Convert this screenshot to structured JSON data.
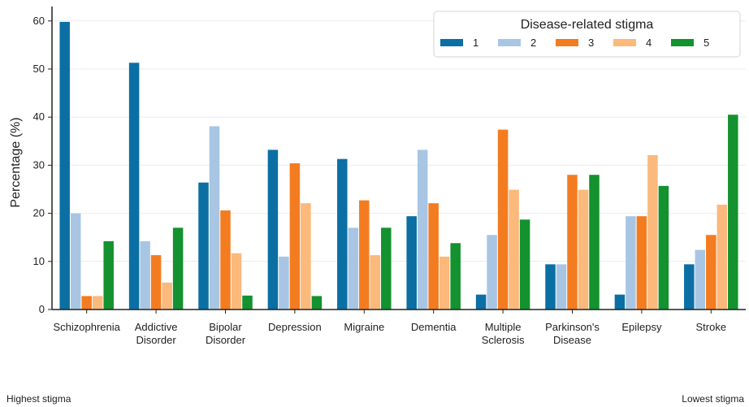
{
  "chart_data": {
    "type": "bar",
    "title": "",
    "ylabel": "Percentage (%)",
    "xlabel": "",
    "ylim": [
      0,
      63
    ],
    "yticks": [
      0,
      10,
      20,
      30,
      40,
      50,
      60
    ],
    "grid": "horizontal",
    "legend": {
      "title": "Disease-related stigma",
      "position": "top-right",
      "ncol": 5
    },
    "categories": [
      "Schizophrenia",
      "Addictive\nDisorder",
      "Bipolar\nDisorder",
      "Depression",
      "Migraine",
      "Dementia",
      "Multiple\nSclerosis",
      "Parkinson's\nDisease",
      "Epilepsy",
      "Stroke"
    ],
    "series": [
      {
        "name": "1",
        "color": "#0b6fa4",
        "values": [
          59.8,
          51.3,
          26.4,
          33.2,
          31.3,
          19.4,
          3.1,
          9.4,
          3.1,
          9.4
        ]
      },
      {
        "name": "2",
        "color": "#a8c6e4",
        "values": [
          20.0,
          14.2,
          38.1,
          11.0,
          17.0,
          33.2,
          15.5,
          9.4,
          19.4,
          12.4
        ]
      },
      {
        "name": "3",
        "color": "#f47c20",
        "values": [
          2.8,
          11.3,
          20.6,
          30.4,
          22.7,
          22.1,
          37.4,
          28.0,
          19.4,
          15.5
        ]
      },
      {
        "name": "4",
        "color": "#fbb97c",
        "values": [
          2.8,
          5.6,
          11.7,
          22.1,
          11.3,
          11.0,
          24.9,
          24.9,
          32.1,
          21.8
        ]
      },
      {
        "name": "5",
        "color": "#13922f",
        "values": [
          14.2,
          17.0,
          2.9,
          2.8,
          17.0,
          13.8,
          18.7,
          28.0,
          25.7,
          40.5
        ]
      }
    ]
  },
  "footer": {
    "left": "Highest stigma",
    "right": "Lowest stigma"
  }
}
